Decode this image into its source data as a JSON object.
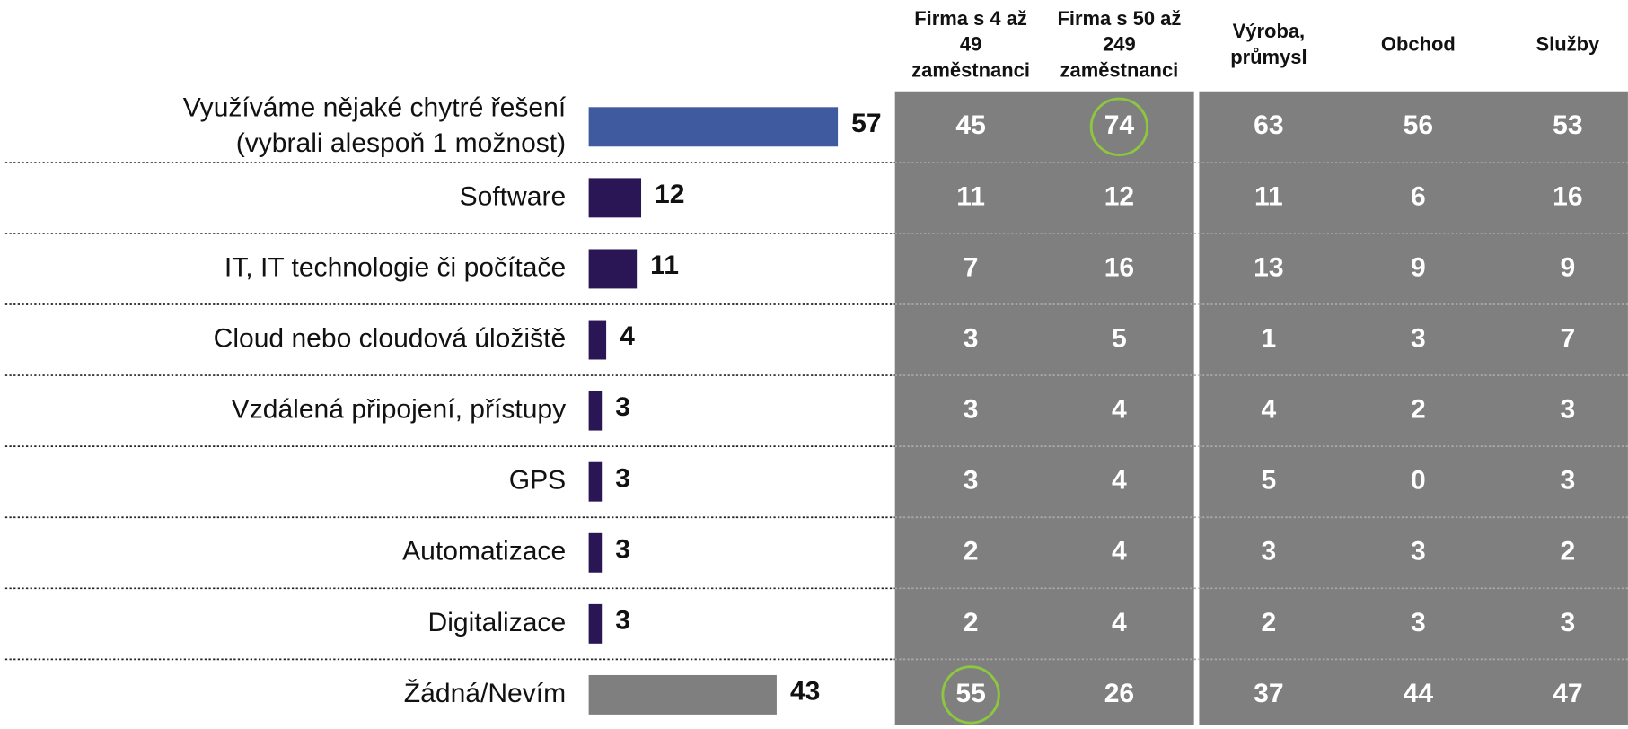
{
  "chart_data": {
    "type": "hbar",
    "categories": [
      [
        "Využíváme nějaké chytré řešení",
        "(vybrali alespoň 1 možnost)"
      ],
      [
        "Software"
      ],
      [
        "IT, IT technologie či počítače"
      ],
      [
        "Cloud nebo cloudová úložiště"
      ],
      [
        "Vzdálená připojení, přístupy"
      ],
      [
        "GPS"
      ],
      [
        "Automatizace"
      ],
      [
        "Digitalizace"
      ],
      [
        "Žádná/Nevím"
      ]
    ],
    "values": [
      57,
      12,
      11,
      4,
      3,
      3,
      3,
      3,
      43
    ],
    "colors": [
      "#3f5a9e",
      "#2b1655",
      "#2b1655",
      "#2b1655",
      "#2b1655",
      "#2b1655",
      "#2b1655",
      "#2b1655",
      "#7f7f7f"
    ],
    "table": {
      "columns": [
        [
          "Firma s 4 až",
          "49",
          "zaměstnanci"
        ],
        [
          "Firma s 50 až",
          "249",
          "zaměstnanci"
        ],
        [
          "Výroba,",
          "průmysl"
        ],
        [
          "Obchod"
        ],
        [
          "Služby"
        ]
      ],
      "rows": [
        [
          45,
          74,
          63,
          56,
          53
        ],
        [
          11,
          12,
          11,
          6,
          16
        ],
        [
          7,
          16,
          13,
          9,
          9
        ],
        [
          3,
          5,
          1,
          3,
          7
        ],
        [
          3,
          4,
          4,
          2,
          3
        ],
        [
          3,
          4,
          5,
          0,
          3
        ],
        [
          2,
          4,
          3,
          3,
          2
        ],
        [
          2,
          4,
          2,
          3,
          3
        ],
        [
          55,
          26,
          37,
          44,
          47
        ]
      ],
      "highlighted": [
        {
          "row": 0,
          "col": 1
        },
        {
          "row": 8,
          "col": 0
        }
      ],
      "highlight_color": "#8dc63f",
      "cell_color": "#7f7f7f"
    }
  }
}
